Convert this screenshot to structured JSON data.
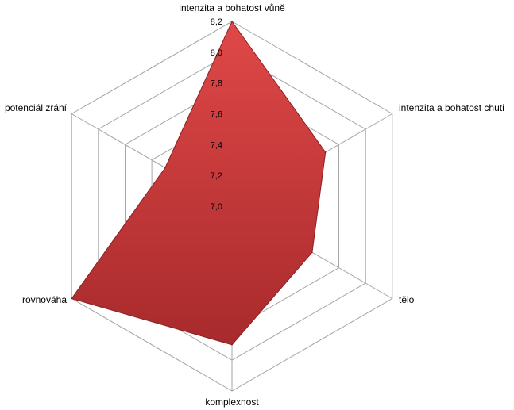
{
  "chart_data": {
    "type": "radar",
    "title": "",
    "axes": [
      "intenzita a bohatost  vůně",
      "intenzita a bohatost  chuti",
      "tělo",
      "komplexnost",
      "rovnováha",
      "potenciál zrání"
    ],
    "tick_labels": [
      "7,0",
      "7,2",
      "7,4",
      "7,6",
      "7,8",
      "8,0",
      "8,2"
    ],
    "range": [
      7.0,
      8.2
    ],
    "series": [
      {
        "values": [
          8.2,
          7.7,
          7.6,
          7.9,
          8.2,
          7.5
        ]
      }
    ],
    "colors": {
      "fill_top": "#e04848",
      "fill_bottom": "#a82a2c",
      "stroke": "#8c1f22",
      "grid": "#a6a6a6"
    },
    "legend": "none"
  }
}
